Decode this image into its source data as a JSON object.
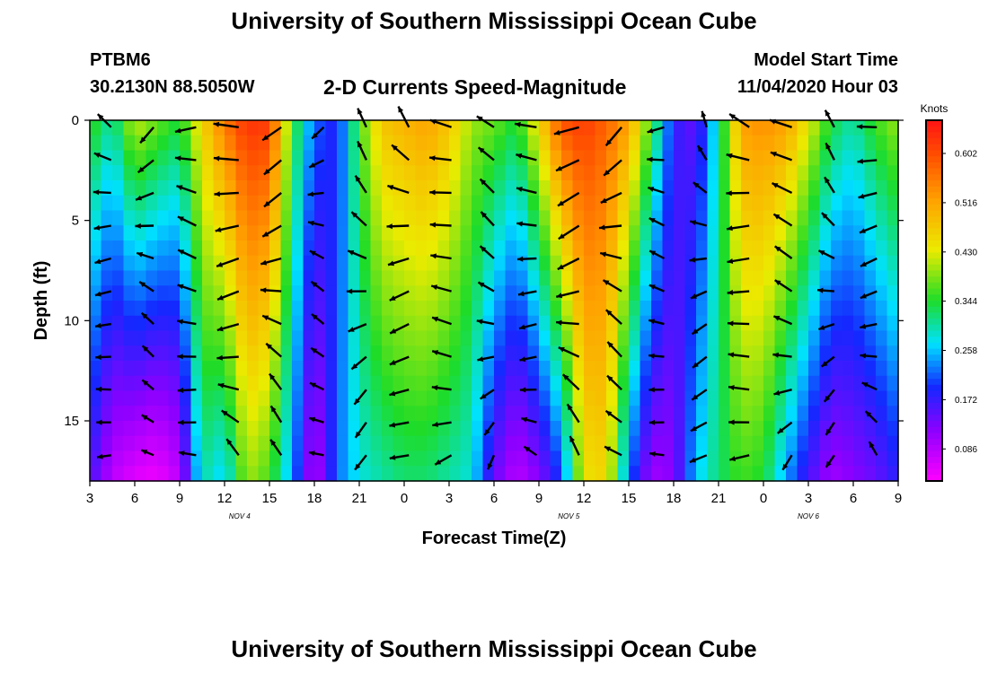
{
  "header": {
    "title": "University of Southern Mississippi Ocean Cube",
    "station": "PTBM6",
    "coordinates": "30.2130N 88.5050W",
    "subtitle": "2-D Currents Speed-Magnitude",
    "model_start_label": "Model Start Time",
    "model_start_value": "11/04/2020 Hour 03"
  },
  "footer": {
    "title": "University of Southern Mississippi Ocean Cube"
  },
  "chart_data": {
    "type": "heatmap",
    "xlabel": "Forecast Time(Z)",
    "ylabel": "Depth (ft)",
    "x_ticks": [
      "3",
      "6",
      "9",
      "12",
      "15",
      "18",
      "21",
      "0",
      "3",
      "6",
      "9",
      "12",
      "15",
      "18",
      "21",
      "0",
      "3",
      "6",
      "9"
    ],
    "date_labels": [
      {
        "text": "NOV 4",
        "hour_index": 10
      },
      {
        "text": "NOV 5",
        "hour_index": 32
      },
      {
        "text": "NOV 6",
        "hour_index": 48
      }
    ],
    "y_ticks": [
      "0",
      "5",
      "10",
      "15"
    ],
    "ylim": [
      0,
      18
    ],
    "xlim_hours": [
      0,
      54
    ],
    "colorbar": {
      "label": "Knots",
      "ticks": [
        "0.602",
        "0.516",
        "0.430",
        "0.344",
        "0.258",
        "0.172",
        "0.086"
      ],
      "range": [
        0.03,
        0.66
      ],
      "scale": "rainbow (magenta low, red high)"
    },
    "column_profiles": {
      "hours": [
        0,
        1.5,
        3,
        4.5,
        6,
        7.5,
        9,
        10.5,
        12,
        13.5,
        15,
        16.5,
        18,
        19.5,
        21,
        22.5,
        24,
        25.5,
        27,
        28.5,
        30,
        31.5,
        33,
        34.5,
        36,
        37.5,
        39,
        40.5,
        42,
        43.5,
        45,
        46.5,
        48,
        49.5,
        51,
        52.5,
        54
      ],
      "speed_surface": [
        0.36,
        0.3,
        0.42,
        0.38,
        0.34,
        0.46,
        0.56,
        0.63,
        0.62,
        0.36,
        0.22,
        0.18,
        0.36,
        0.48,
        0.5,
        0.52,
        0.48,
        0.4,
        0.38,
        0.34,
        0.46,
        0.6,
        0.62,
        0.58,
        0.52,
        0.36,
        0.18,
        0.14,
        0.3,
        0.52,
        0.54,
        0.52,
        0.44,
        0.34,
        0.3,
        0.36,
        0.4
      ],
      "speed_bottom": [
        0.16,
        0.08,
        0.05,
        0.04,
        0.08,
        0.3,
        0.26,
        0.4,
        0.36,
        0.24,
        0.08,
        0.22,
        0.28,
        0.3,
        0.32,
        0.32,
        0.3,
        0.28,
        0.14,
        0.08,
        0.12,
        0.2,
        0.44,
        0.46,
        0.22,
        0.1,
        0.12,
        0.26,
        0.32,
        0.36,
        0.34,
        0.24,
        0.16,
        0.1,
        0.12,
        0.14,
        0.18
      ]
    },
    "vectors": "arrow glyphs show current direction at sampled depths and times"
  }
}
